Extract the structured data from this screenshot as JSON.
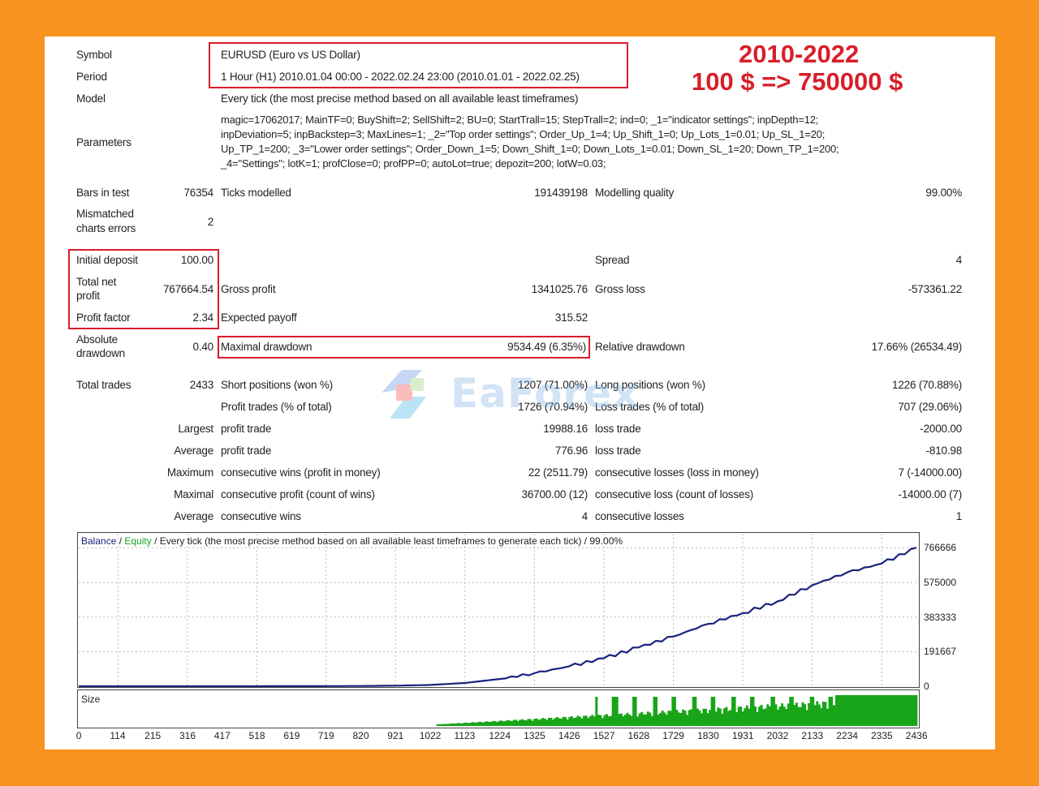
{
  "headline": {
    "years": "2010-2022",
    "growth": "100 $ => 750000 $"
  },
  "report": {
    "symbol_label": "Symbol",
    "symbol_value": "EURUSD (Euro vs US Dollar)",
    "period_label": "Period",
    "period_value": "1 Hour (H1) 2010.01.04 00:00 - 2022.02.24 23:00 (2010.01.01 - 2022.02.25)",
    "model_label": "Model",
    "model_value": "Every tick (the most precise method based on all available least timeframes)",
    "parameters_label": "Parameters",
    "parameters_lines": [
      "magic=17062017; MainTF=0; BuyShift=2; SellShift=2; BU=0; StartTrall=15; StepTrall=2; ind=0; _1=\"indicator settings\"; inpDepth=12;",
      "inpDeviation=5; inpBackstep=3; MaxLines=1; _2=\"Top order settings\"; Order_Up_1=4; Up_Shift_1=0; Up_Lots_1=0.01; Up_SL_1=20;",
      "Up_TP_1=200; _3=\"Lower order settings\"; Order_Down_1=5; Down_Shift_1=0; Down_Lots_1=0.01; Down_SL_1=20; Down_TP_1=200;",
      "_4=\"Settings\"; lotK=1; profClose=0; profPP=0; autoLot=true; depozit=200; lotW=0.03;"
    ],
    "bars_label": "Bars in test",
    "bars_value": "76354",
    "ticks_label": "Ticks modelled",
    "ticks_value": "191439198",
    "quality_label": "Modelling quality",
    "quality_value": "99.00%",
    "mismatch_label_1": "Mismatched",
    "mismatch_label_2": "charts errors",
    "mismatch_value": "2",
    "initial_label": "Initial deposit",
    "initial_value": "100.00",
    "spread_label": "Spread",
    "spread_value": "4",
    "net_label_1": "Total net",
    "net_label_2": "profit",
    "net_value": "767664.54",
    "gross_profit_label": "Gross profit",
    "gross_profit_value": "1341025.76",
    "gross_loss_label": "Gross loss",
    "gross_loss_value": "-573361.22",
    "pf_label": "Profit factor",
    "pf_value": "2.34",
    "payoff_label": "Expected payoff",
    "payoff_value": "315.52",
    "abs_dd_label_1": "Absolute",
    "abs_dd_label_2": "drawdown",
    "abs_dd_value": "0.40",
    "max_dd_label": "Maximal drawdown",
    "max_dd_value": "9534.49 (6.35%)",
    "rel_dd_label": "Relative drawdown",
    "rel_dd_value": "17.66% (26534.49)",
    "total_trades_label": "Total trades",
    "total_trades_value": "2433",
    "short_label": "Short positions (won %)",
    "short_value": "1207 (71.00%)",
    "long_label": "Long positions (won %)",
    "long_value": "1226 (70.88%)",
    "profit_trades_label": "Profit trades (% of total)",
    "profit_trades_value": "1726 (70.94%)",
    "loss_trades_label": "Loss trades (% of total)",
    "loss_trades_value": "707 (29.06%)",
    "largest_label": "Largest",
    "largest_profit_label": "profit trade",
    "largest_profit_value": "19988.16",
    "largest_loss_label": "loss trade",
    "largest_loss_value": "-2000.00",
    "average_label": "Average",
    "avg_profit_label": "profit trade",
    "avg_profit_value": "776.96",
    "avg_loss_label": "loss trade",
    "avg_loss_value": "-810.98",
    "maximum_label": "Maximum",
    "max_wins_label": "consecutive wins (profit in money)",
    "max_wins_value": "22 (2511.79)",
    "max_losses_label": "consecutive losses (loss in money)",
    "max_losses_value": "7 (-14000.00)",
    "maximal_label": "Maximal",
    "maximal_profit_label": "consecutive profit (count of wins)",
    "maximal_profit_value": "36700.00 (12)",
    "maximal_loss_label": "consecutive loss (count of losses)",
    "maximal_loss_value": "-14000.00 (7)",
    "average2_label": "Average",
    "avg_wins_label": "consecutive wins",
    "avg_wins_value": "4",
    "avg_losses_label": "consecutive losses",
    "avg_losses_value": "1"
  },
  "watermark": {
    "text": "EaForex"
  },
  "chart_data": [
    {
      "type": "line",
      "legend_balance": "Balance",
      "legend_sep1": " / ",
      "legend_equity": "Equity",
      "legend_rest": " / Every tick (the most precise method based on all available least timeframes to generate each tick) / 99.00%",
      "x": [
        0,
        114,
        215,
        316,
        417,
        518,
        619,
        719,
        820,
        921,
        1022,
        1123,
        1224,
        1325,
        1426,
        1527,
        1628,
        1729,
        1830,
        1931,
        2032,
        2133,
        2234,
        2335,
        2436
      ],
      "series": [
        {
          "name": "Balance",
          "values": [
            100,
            100,
            100,
            120,
            160,
            200,
            300,
            700,
            1500,
            3000,
            7000,
            18000,
            40000,
            72000,
            110000,
            155000,
            215000,
            275000,
            345000,
            405000,
            470000,
            560000,
            630000,
            680000,
            767665
          ]
        }
      ],
      "yticks": [
        "766666",
        "575000",
        "383333",
        "191667",
        "0"
      ],
      "ylim": [
        0,
        800000
      ],
      "xticks": [
        "0",
        "114",
        "215",
        "316",
        "417",
        "518",
        "619",
        "719",
        "820",
        "921",
        "1022",
        "1123",
        "1224",
        "1325",
        "1426",
        "1527",
        "1628",
        "1729",
        "1830",
        "1931",
        "2032",
        "2133",
        "2234",
        "2335",
        "2436"
      ],
      "colors": {
        "balance": "#1a237e",
        "equity": "#1aa31a"
      }
    },
    {
      "type": "bar",
      "title": "Size",
      "color": "#19a519"
    }
  ]
}
